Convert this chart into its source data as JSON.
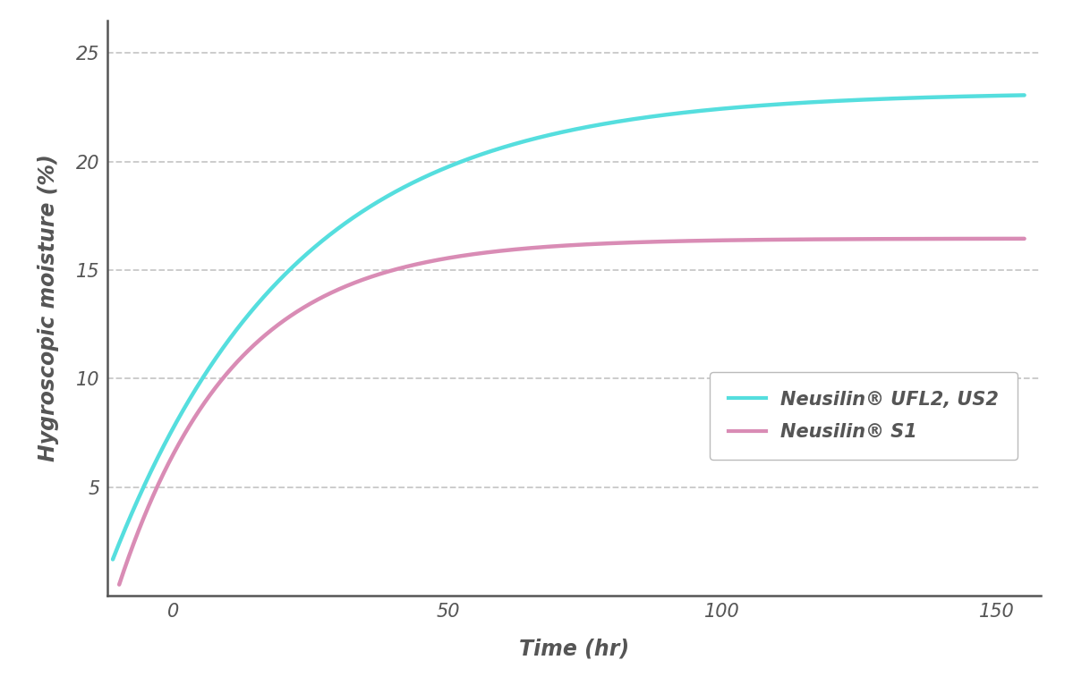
{
  "xlabel": "Time (hr)",
  "ylabel": "Hygroscopic moisture (%)",
  "xlim": [
    -12,
    158
  ],
  "ylim": [
    0,
    26.5
  ],
  "yticks": [
    5,
    10,
    15,
    20,
    25
  ],
  "xticks": [
    0,
    50,
    100,
    150
  ],
  "curve1_color": "#55DEDE",
  "curve2_color": "#D98CB5",
  "curve1_asymptote": 23.2,
  "curve2_asymptote": 16.45,
  "curve1_rate": 0.03,
  "curve2_rate": 0.048,
  "curve1_shift": 13.5,
  "curve2_shift": 10.5,
  "legend_label1": "Neusilin® UFL2, US2",
  "legend_label2": "Neusilin® S1",
  "background_color": "#FFFFFF",
  "axis_color": "#555555",
  "grid_color": "#C8C8C8",
  "label_fontsize": 17,
  "tick_fontsize": 15,
  "legend_fontsize": 15,
  "line_width": 3.2
}
